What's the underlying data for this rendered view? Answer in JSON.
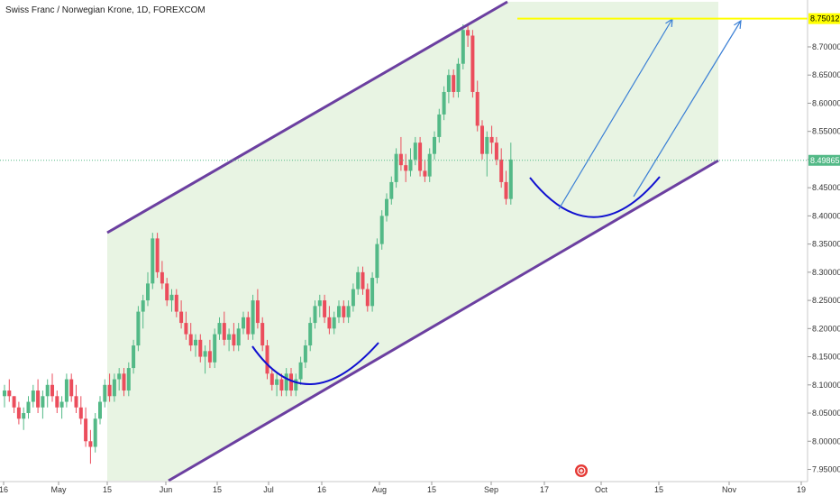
{
  "title": "Swiss Franc / Norwegian Krone, 1D, FOREXCOM",
  "colors": {
    "up": "#53b987",
    "down": "#eb4d5c",
    "channel": "#6b3fa0",
    "channel_fill": "#e8f4e3",
    "arc": "#1010d0",
    "arrow": "#3a7fd5",
    "level": "#ffff00",
    "current": "#53b987"
  },
  "chart_data": {
    "type": "candlestick",
    "symbol": "Swiss Franc / Norwegian Krone",
    "interval": "1D",
    "exchange": "FOREXCOM",
    "ylim": [
      7.93,
      8.78
    ],
    "y_ticks": [
      "7.95000",
      "8.00000",
      "8.05000",
      "8.10000",
      "8.15000",
      "8.20000",
      "8.25000",
      "8.30000",
      "8.35000",
      "8.40000",
      "8.45000",
      "8.50000",
      "8.55000",
      "8.60000",
      "8.65000",
      "8.70000"
    ],
    "x_ticks": [
      "16",
      "May",
      "15",
      "Jun",
      "15",
      "Jul",
      "16",
      "Aug",
      "15",
      "Sep",
      "17",
      "Oct",
      "15",
      "Nov",
      "19"
    ],
    "current_price": "8.49865",
    "level_price": "8.75012",
    "candles": [
      [
        8.08,
        8.1,
        8.06,
        8.09
      ],
      [
        8.09,
        8.11,
        8.07,
        8.08
      ],
      [
        8.08,
        8.08,
        8.05,
        8.06
      ],
      [
        8.06,
        8.07,
        8.03,
        8.04
      ],
      [
        8.04,
        8.06,
        8.02,
        8.05
      ],
      [
        8.05,
        8.08,
        8.04,
        8.07
      ],
      [
        8.07,
        8.1,
        8.06,
        8.09
      ],
      [
        8.09,
        8.11,
        8.05,
        8.06
      ],
      [
        8.06,
        8.09,
        8.04,
        8.08
      ],
      [
        8.08,
        8.11,
        8.06,
        8.1
      ],
      [
        8.1,
        8.12,
        8.07,
        8.08
      ],
      [
        8.08,
        8.09,
        8.05,
        8.06
      ],
      [
        8.06,
        8.08,
        8.04,
        8.07
      ],
      [
        8.07,
        8.12,
        8.06,
        8.11
      ],
      [
        8.11,
        8.12,
        8.07,
        8.08
      ],
      [
        8.08,
        8.1,
        8.05,
        8.06
      ],
      [
        8.06,
        8.08,
        8.03,
        8.04
      ],
      [
        8.04,
        8.06,
        7.99,
        8.0
      ],
      [
        8.0,
        8.02,
        7.96,
        7.99
      ],
      [
        7.99,
        8.05,
        7.98,
        8.04
      ],
      [
        8.04,
        8.08,
        8.03,
        8.07
      ],
      [
        8.07,
        8.11,
        8.06,
        8.1
      ],
      [
        8.1,
        8.12,
        8.07,
        8.08
      ],
      [
        8.08,
        8.12,
        8.07,
        8.11
      ],
      [
        8.11,
        8.13,
        8.09,
        8.12
      ],
      [
        8.12,
        8.13,
        8.08,
        8.09
      ],
      [
        8.09,
        8.14,
        8.08,
        8.13
      ],
      [
        8.13,
        8.18,
        8.12,
        8.17
      ],
      [
        8.17,
        8.24,
        8.16,
        8.23
      ],
      [
        8.23,
        8.26,
        8.2,
        8.25
      ],
      [
        8.25,
        8.3,
        8.24,
        8.28
      ],
      [
        8.28,
        8.37,
        8.27,
        8.36
      ],
      [
        8.36,
        8.37,
        8.29,
        8.3
      ],
      [
        8.3,
        8.32,
        8.27,
        8.28
      ],
      [
        8.28,
        8.29,
        8.24,
        8.25
      ],
      [
        8.25,
        8.27,
        8.23,
        8.26
      ],
      [
        8.26,
        8.27,
        8.22,
        8.23
      ],
      [
        8.23,
        8.25,
        8.2,
        8.21
      ],
      [
        8.21,
        8.23,
        8.18,
        8.19
      ],
      [
        8.19,
        8.21,
        8.16,
        8.17
      ],
      [
        8.17,
        8.19,
        8.15,
        8.18
      ],
      [
        8.18,
        8.19,
        8.14,
        8.15
      ],
      [
        8.15,
        8.17,
        8.12,
        8.16
      ],
      [
        8.16,
        8.18,
        8.13,
        8.14
      ],
      [
        8.14,
        8.2,
        8.13,
        8.19
      ],
      [
        8.19,
        8.22,
        8.18,
        8.21
      ],
      [
        8.21,
        8.23,
        8.17,
        8.18
      ],
      [
        8.18,
        8.2,
        8.16,
        8.19
      ],
      [
        8.19,
        8.21,
        8.16,
        8.17
      ],
      [
        8.17,
        8.21,
        8.16,
        8.2
      ],
      [
        8.2,
        8.23,
        8.19,
        8.22
      ],
      [
        8.22,
        8.23,
        8.18,
        8.19
      ],
      [
        8.19,
        8.26,
        8.18,
        8.25
      ],
      [
        8.25,
        8.27,
        8.2,
        8.21
      ],
      [
        8.21,
        8.22,
        8.16,
        8.17
      ],
      [
        8.17,
        8.18,
        8.11,
        8.12
      ],
      [
        8.12,
        8.13,
        8.09,
        8.1
      ],
      [
        8.1,
        8.12,
        8.08,
        8.11
      ],
      [
        8.11,
        8.12,
        8.08,
        8.09
      ],
      [
        8.09,
        8.13,
        8.08,
        8.12
      ],
      [
        8.12,
        8.13,
        8.08,
        8.09
      ],
      [
        8.09,
        8.12,
        8.08,
        8.11
      ],
      [
        8.11,
        8.15,
        8.1,
        8.14
      ],
      [
        8.14,
        8.18,
        8.13,
        8.17
      ],
      [
        8.17,
        8.22,
        8.16,
        8.21
      ],
      [
        8.21,
        8.25,
        8.2,
        8.24
      ],
      [
        8.24,
        8.26,
        8.22,
        8.25
      ],
      [
        8.25,
        8.26,
        8.21,
        8.22
      ],
      [
        8.22,
        8.24,
        8.19,
        8.2
      ],
      [
        8.2,
        8.23,
        8.19,
        8.22
      ],
      [
        8.22,
        8.25,
        8.21,
        8.24
      ],
      [
        8.24,
        8.25,
        8.21,
        8.22
      ],
      [
        8.22,
        8.25,
        8.21,
        8.24
      ],
      [
        8.24,
        8.28,
        8.23,
        8.27
      ],
      [
        8.27,
        8.31,
        8.26,
        8.3
      ],
      [
        8.3,
        8.31,
        8.26,
        8.27
      ],
      [
        8.27,
        8.28,
        8.23,
        8.24
      ],
      [
        8.24,
        8.3,
        8.23,
        8.29
      ],
      [
        8.29,
        8.36,
        8.28,
        8.35
      ],
      [
        8.35,
        8.41,
        8.34,
        8.4
      ],
      [
        8.4,
        8.44,
        8.39,
        8.43
      ],
      [
        8.43,
        8.47,
        8.42,
        8.46
      ],
      [
        8.46,
        8.52,
        8.45,
        8.51
      ],
      [
        8.51,
        8.54,
        8.48,
        8.49
      ],
      [
        8.49,
        8.51,
        8.46,
        8.48
      ],
      [
        8.48,
        8.52,
        8.47,
        8.5
      ],
      [
        8.5,
        8.54,
        8.49,
        8.53
      ],
      [
        8.53,
        8.54,
        8.47,
        8.48
      ],
      [
        8.48,
        8.5,
        8.46,
        8.47
      ],
      [
        8.47,
        8.52,
        8.46,
        8.51
      ],
      [
        8.51,
        8.55,
        8.5,
        8.54
      ],
      [
        8.54,
        8.59,
        8.53,
        8.58
      ],
      [
        8.58,
        8.63,
        8.57,
        8.62
      ],
      [
        8.62,
        8.66,
        8.6,
        8.65
      ],
      [
        8.65,
        8.66,
        8.61,
        8.62
      ],
      [
        8.62,
        8.68,
        8.61,
        8.67
      ],
      [
        8.67,
        8.74,
        8.66,
        8.73
      ],
      [
        8.73,
        8.74,
        8.7,
        8.72
      ],
      [
        8.72,
        8.73,
        8.61,
        8.62
      ],
      [
        8.62,
        8.64,
        8.55,
        8.56
      ],
      [
        8.56,
        8.57,
        8.5,
        8.51
      ],
      [
        8.51,
        8.55,
        8.47,
        8.54
      ],
      [
        8.54,
        8.56,
        8.51,
        8.53
      ],
      [
        8.53,
        8.54,
        8.49,
        8.5
      ],
      [
        8.5,
        8.52,
        8.45,
        8.46
      ],
      [
        8.46,
        8.48,
        8.42,
        8.43
      ],
      [
        8.43,
        8.53,
        8.42,
        8.5
      ]
    ],
    "annotations": {
      "channel_upper": [
        [
          119,
          258
        ],
        [
          563,
          2
        ]
      ],
      "channel_lower": [
        [
          187,
          533
        ],
        [
          797,
          178
        ]
      ],
      "channel_fill_right": 797,
      "arcs": [
        {
          "from": [
            280,
            384
          ],
          "control": [
            340,
            470
          ],
          "to": [
            420,
            380
          ]
        },
        {
          "from": [
            588,
            197
          ],
          "control": [
            658,
            285
          ],
          "to": [
            732,
            196
          ]
        }
      ],
      "arrows": [
        {
          "from": [
            620,
            232
          ],
          "to": [
            746,
            21
          ]
        },
        {
          "from": [
            703,
            218
          ],
          "to": [
            822,
            23
          ]
        }
      ]
    }
  }
}
